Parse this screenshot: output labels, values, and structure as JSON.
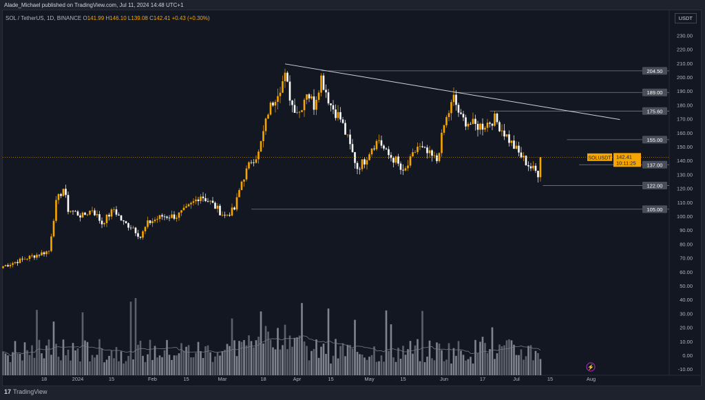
{
  "header": {
    "published": "Alade_Michael published on TradingView.com, Jul 11, 2024 14:48 UTC+1"
  },
  "legend": {
    "symbol": "SOL / TetherUS, 1D, BINANCE",
    "o_label": "O",
    "o": "141.99",
    "h_label": "H",
    "h": "146.10",
    "l_label": "L",
    "l": "139.08",
    "c_label": "C",
    "c": "142.41",
    "change": "+0.43 (+0.30%)"
  },
  "currency": "USDT",
  "footer": {
    "brand": "TradingView",
    "logo_icon": "tradingview-logo-icon"
  },
  "colors": {
    "up": "#f7a600",
    "down": "#ffffff",
    "bg": "#131722"
  },
  "chart_data": {
    "type": "candlestick",
    "symbol": "SOLUSDT",
    "last_price": "142.41",
    "countdown": "10:11:25",
    "y_ticks": [
      "230.00",
      "220.00",
      "210.00",
      "200.00",
      "190.00",
      "180.00",
      "170.00",
      "160.00",
      "150.00",
      "140.00",
      "130.00",
      "120.00",
      "110.00",
      "100.00",
      "90.00",
      "80.00",
      "70.00",
      "60.00",
      "50.00",
      "40.00",
      "30.00",
      "20.00",
      "10.00",
      "0.00",
      "-10.00"
    ],
    "x_ticks": [
      {
        "label": "18",
        "day": 17
      },
      {
        "label": "2024",
        "day": 31
      },
      {
        "label": "15",
        "day": 45
      },
      {
        "label": "Feb",
        "day": 62
      },
      {
        "label": "15",
        "day": 76
      },
      {
        "label": "Mar",
        "day": 91
      },
      {
        "label": "18",
        "day": 108
      },
      {
        "label": "Apr",
        "day": 122
      },
      {
        "label": "15",
        "day": 136
      },
      {
        "label": "May",
        "day": 152
      },
      {
        "label": "15",
        "day": 166
      },
      {
        "label": "Jun",
        "day": 183
      },
      {
        "label": "17",
        "day": 199
      },
      {
        "label": "Jul",
        "day": 213
      },
      {
        "label": "15",
        "day": 227
      },
      {
        "label": "Aug",
        "day": 244
      }
    ],
    "close_anchors": [
      [
        0,
        64
      ],
      [
        10,
        70
      ],
      [
        19,
        75
      ],
      [
        22,
        110
      ],
      [
        25,
        120
      ],
      [
        27,
        105
      ],
      [
        33,
        100
      ],
      [
        37,
        105
      ],
      [
        41,
        95
      ],
      [
        46,
        105
      ],
      [
        50,
        95
      ],
      [
        54,
        92
      ],
      [
        57,
        85
      ],
      [
        60,
        95
      ],
      [
        66,
        100
      ],
      [
        72,
        100
      ],
      [
        76,
        105
      ],
      [
        82,
        115
      ],
      [
        86,
        110
      ],
      [
        92,
        100
      ],
      [
        96,
        105
      ],
      [
        99,
        125
      ],
      [
        103,
        140
      ],
      [
        106,
        145
      ],
      [
        110,
        175
      ],
      [
        114,
        190
      ],
      [
        117,
        200
      ],
      [
        120,
        180
      ],
      [
        123,
        175
      ],
      [
        126,
        190
      ],
      [
        129,
        180
      ],
      [
        132,
        200
      ],
      [
        136,
        180
      ],
      [
        140,
        170
      ],
      [
        144,
        150
      ],
      [
        147,
        135
      ],
      [
        150,
        140
      ],
      [
        153,
        150
      ],
      [
        156,
        155
      ],
      [
        159,
        145
      ],
      [
        163,
        140
      ],
      [
        166,
        130
      ],
      [
        169,
        140
      ],
      [
        172,
        150
      ],
      [
        176,
        145
      ],
      [
        180,
        140
      ],
      [
        183,
        165
      ],
      [
        187,
        185
      ],
      [
        190,
        170
      ],
      [
        196,
        165
      ],
      [
        199,
        165
      ],
      [
        204,
        170
      ],
      [
        210,
        155
      ],
      [
        214,
        145
      ],
      [
        219,
        135
      ],
      [
        224,
        128
      ],
      [
        227,
        135
      ],
      [
        230,
        145
      ],
      [
        234,
        150
      ],
      [
        237,
        135
      ],
      [
        240,
        140
      ],
      [
        223,
        142
      ]
    ],
    "levels": [
      {
        "label": "204.50",
        "value": 204.5,
        "from_day": 132
      },
      {
        "label": "189.00",
        "value": 189,
        "from_day": 187
      },
      {
        "label": "175.60",
        "value": 175.6,
        "from_day": 202
      },
      {
        "label": "155.00",
        "value": 155,
        "from_day": 234
      },
      {
        "label": "137.00",
        "value": 137,
        "from_day": 239
      },
      {
        "label": "122.00",
        "value": 122,
        "from_day": 224
      },
      {
        "label": "105.00",
        "value": 105,
        "from_day": 103
      }
    ],
    "trendline": [
      [
        117,
        209.5
      ],
      [
        256,
        169.5
      ]
    ],
    "volume_note": "volume histogram with moving average overlay"
  }
}
